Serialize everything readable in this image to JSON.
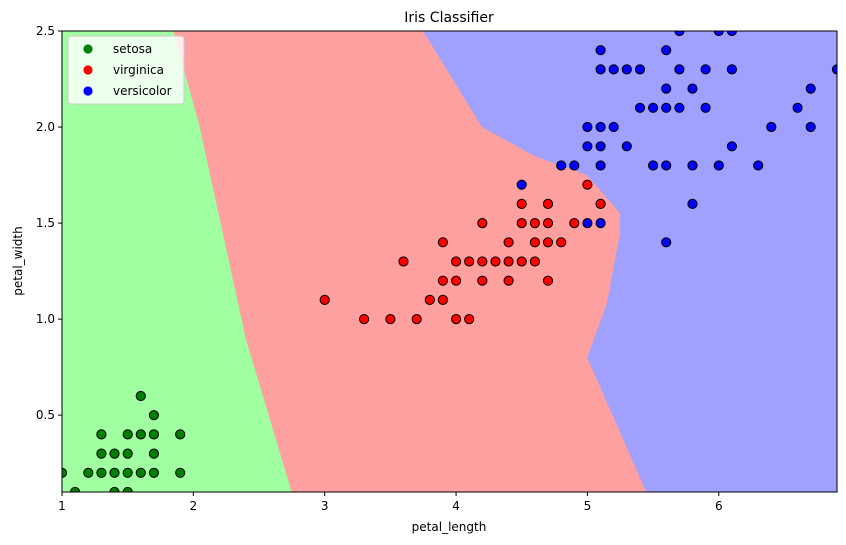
{
  "chart_data": {
    "type": "scatter",
    "title": "Iris Classifier",
    "xlabel": "petal_length",
    "ylabel": "petal_width",
    "xlim": [
      1.0,
      6.9
    ],
    "ylim": [
      0.1,
      2.5
    ],
    "xticks": [
      1,
      2,
      3,
      4,
      5,
      6
    ],
    "xtick_labels": [
      "1",
      "2",
      "3",
      "4",
      "5",
      "6"
    ],
    "yticks": [
      0.5,
      1.0,
      1.5,
      2.0,
      2.5
    ],
    "ytick_labels": [
      "0.5",
      "1.0",
      "1.5",
      "2.0",
      "2.5"
    ],
    "grid": false,
    "legend_position": "top-left",
    "decision_regions": [
      {
        "class": "setosa",
        "color": "#a0ffa0",
        "polygon": [
          [
            1.0,
            0.1
          ],
          [
            2.75,
            0.1
          ],
          [
            2.4,
            0.9
          ],
          [
            2.05,
            2.0
          ],
          [
            1.85,
            2.5
          ],
          [
            1.0,
            2.5
          ]
        ]
      },
      {
        "class": "virginica",
        "color": "#ffa0a0",
        "polygon": [
          [
            2.75,
            0.1
          ],
          [
            5.45,
            0.1
          ],
          [
            5.0,
            0.8
          ],
          [
            5.15,
            1.08
          ],
          [
            5.25,
            1.45
          ],
          [
            5.25,
            1.55
          ],
          [
            5.0,
            1.75
          ],
          [
            4.6,
            1.85
          ],
          [
            4.2,
            2.0
          ],
          [
            3.75,
            2.5
          ],
          [
            1.85,
            2.5
          ],
          [
            2.05,
            2.0
          ],
          [
            2.4,
            0.9
          ]
        ]
      },
      {
        "class": "versicolor",
        "color": "#a0a0ff",
        "polygon": [
          [
            5.45,
            0.1
          ],
          [
            6.9,
            0.1
          ],
          [
            6.9,
            2.5
          ],
          [
            3.75,
            2.5
          ],
          [
            4.2,
            2.0
          ],
          [
            4.6,
            1.85
          ],
          [
            5.0,
            1.75
          ],
          [
            5.25,
            1.55
          ],
          [
            5.25,
            1.45
          ],
          [
            5.15,
            1.08
          ],
          [
            5.0,
            0.8
          ]
        ]
      }
    ],
    "series": [
      {
        "name": "setosa",
        "color": "#008000",
        "points": [
          [
            1.0,
            0.2
          ],
          [
            1.1,
            0.1
          ],
          [
            1.2,
            0.2
          ],
          [
            1.3,
            0.2
          ],
          [
            1.3,
            0.3
          ],
          [
            1.3,
            0.4
          ],
          [
            1.4,
            0.1
          ],
          [
            1.4,
            0.2
          ],
          [
            1.4,
            0.3
          ],
          [
            1.5,
            0.1
          ],
          [
            1.5,
            0.2
          ],
          [
            1.5,
            0.3
          ],
          [
            1.5,
            0.4
          ],
          [
            1.6,
            0.2
          ],
          [
            1.6,
            0.4
          ],
          [
            1.6,
            0.6
          ],
          [
            1.7,
            0.2
          ],
          [
            1.7,
            0.3
          ],
          [
            1.7,
            0.4
          ],
          [
            1.7,
            0.5
          ],
          [
            1.9,
            0.2
          ],
          [
            1.9,
            0.4
          ]
        ]
      },
      {
        "name": "virginica",
        "color": "#ff0000",
        "points": [
          [
            3.0,
            1.1
          ],
          [
            3.3,
            1.0
          ],
          [
            3.5,
            1.0
          ],
          [
            3.6,
            1.3
          ],
          [
            3.7,
            1.0
          ],
          [
            3.8,
            1.1
          ],
          [
            3.9,
            1.1
          ],
          [
            3.9,
            1.2
          ],
          [
            3.9,
            1.4
          ],
          [
            4.0,
            1.0
          ],
          [
            4.0,
            1.2
          ],
          [
            4.0,
            1.3
          ],
          [
            4.1,
            1.0
          ],
          [
            4.1,
            1.3
          ],
          [
            4.2,
            1.2
          ],
          [
            4.2,
            1.3
          ],
          [
            4.2,
            1.5
          ],
          [
            4.3,
            1.3
          ],
          [
            4.4,
            1.2
          ],
          [
            4.4,
            1.3
          ],
          [
            4.4,
            1.4
          ],
          [
            4.5,
            1.3
          ],
          [
            4.5,
            1.5
          ],
          [
            4.5,
            1.6
          ],
          [
            4.6,
            1.3
          ],
          [
            4.6,
            1.4
          ],
          [
            4.6,
            1.5
          ],
          [
            4.7,
            1.2
          ],
          [
            4.7,
            1.4
          ],
          [
            4.7,
            1.5
          ],
          [
            4.7,
            1.6
          ],
          [
            4.8,
            1.4
          ],
          [
            4.9,
            1.5
          ],
          [
            5.0,
            1.7
          ],
          [
            5.1,
            1.6
          ]
        ]
      },
      {
        "name": "versicolor",
        "color": "#0000ff",
        "points": [
          [
            4.5,
            1.7
          ],
          [
            4.8,
            1.8
          ],
          [
            4.9,
            1.8
          ],
          [
            5.0,
            1.5
          ],
          [
            5.0,
            1.9
          ],
          [
            5.0,
            2.0
          ],
          [
            5.1,
            1.5
          ],
          [
            5.1,
            1.8
          ],
          [
            5.1,
            1.9
          ],
          [
            5.1,
            2.0
          ],
          [
            5.1,
            2.3
          ],
          [
            5.1,
            2.4
          ],
          [
            5.2,
            2.0
          ],
          [
            5.2,
            2.3
          ],
          [
            5.3,
            1.9
          ],
          [
            5.3,
            2.3
          ],
          [
            5.4,
            2.1
          ],
          [
            5.4,
            2.3
          ],
          [
            5.5,
            1.8
          ],
          [
            5.5,
            2.1
          ],
          [
            5.6,
            1.4
          ],
          [
            5.6,
            1.8
          ],
          [
            5.6,
            2.1
          ],
          [
            5.6,
            2.2
          ],
          [
            5.6,
            2.4
          ],
          [
            5.7,
            2.1
          ],
          [
            5.7,
            2.3
          ],
          [
            5.7,
            2.5
          ],
          [
            5.8,
            1.6
          ],
          [
            5.8,
            1.8
          ],
          [
            5.8,
            2.2
          ],
          [
            5.9,
            2.1
          ],
          [
            5.9,
            2.3
          ],
          [
            6.0,
            1.8
          ],
          [
            6.0,
            2.5
          ],
          [
            6.1,
            1.9
          ],
          [
            6.1,
            2.3
          ],
          [
            6.1,
            2.5
          ],
          [
            6.3,
            1.8
          ],
          [
            6.4,
            2.0
          ],
          [
            6.6,
            2.1
          ],
          [
            6.7,
            2.0
          ],
          [
            6.7,
            2.2
          ],
          [
            6.9,
            2.3
          ]
        ]
      }
    ]
  }
}
